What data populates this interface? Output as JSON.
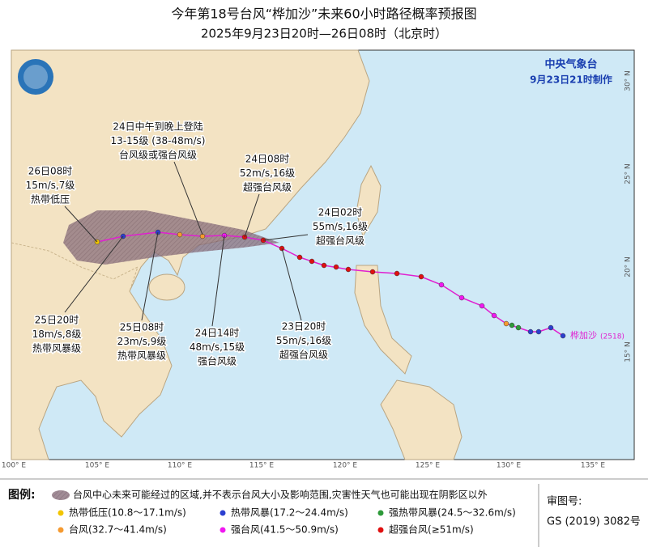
{
  "header": {
    "title": "今年第18号台风“桦加沙”未来60小时路径概率预报图",
    "subtitle": "2025年9月23日20时—26日08时（北京时）"
  },
  "map": {
    "agency": "中央气象台",
    "issued": "9月23日21时制作",
    "storm_name": "桦加沙",
    "storm_id": "(2518)",
    "lon_labels": [
      "100° E",
      "105° E",
      "110° E",
      "115° E",
      "120° E",
      "125° E",
      "130° E",
      "135° E"
    ],
    "lat_labels": [
      "30° N",
      "25° N",
      "20° N",
      "15° N"
    ],
    "annotations": [
      {
        "lines": [
          "24日中午到晚上登陆",
          "13-15级 (38-48m/s)",
          "台风级或强台风级"
        ]
      },
      {
        "lines": [
          "24日08时",
          "52m/s,16级",
          "超强台风级"
        ]
      },
      {
        "lines": [
          "26日08时",
          "15m/s,7级",
          "热带低压"
        ]
      },
      {
        "lines": [
          "24日02时",
          "55m/s,16级",
          "超强台风级"
        ]
      },
      {
        "lines": [
          "25日20时",
          "18m/s,8级",
          "热带风暴级"
        ]
      },
      {
        "lines": [
          "25日08时",
          "23m/s,9级",
          "热带风暴级"
        ]
      },
      {
        "lines": [
          "24日14时",
          "48m/s,15级",
          "强台风级"
        ]
      },
      {
        "lines": [
          "23日20时",
          "55m/s,16级",
          "超强台风级"
        ]
      }
    ]
  },
  "legend": {
    "title": "图例:",
    "area": "台风中心未来可能经过的区域,并不表示台风大小及影响范围,灾害性天气也可能出现在阴影区以外",
    "levels": [
      {
        "label": "热带低压(10.8～17.1m/s)",
        "color": "#f2c500"
      },
      {
        "label": "热带风暴(17.2～24.4m/s)",
        "color": "#2b3fd0"
      },
      {
        "label": "强热带风暴(24.5～32.6m/s)",
        "color": "#2e9a3a"
      },
      {
        "label": "台风(32.7～41.4m/s)",
        "color": "#f59a30"
      },
      {
        "label": "强台风(41.5～50.9m/s)",
        "color": "#f018f0"
      },
      {
        "label": "超强台风(≥51m/s)",
        "color": "#e01010"
      }
    ],
    "approval_label": "审图号:",
    "approval_number": "GS (2019) 3082号"
  }
}
